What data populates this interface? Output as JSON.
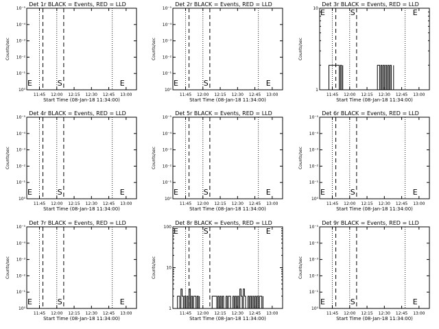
{
  "chart_data": [
    {
      "type": "line",
      "title": "Det 1r BLACK = Events, RED = LLD",
      "ylabel": "Counts/sec",
      "xlabel": "Start Time (08-Jan-18 11:34:00)",
      "scale": "log",
      "y_ticks": [
        "10⁰",
        "10⁻¹",
        "10⁻²",
        "10⁻³",
        "10⁻⁴",
        "10⁻⁵"
      ],
      "x_ticks": [
        "11:45",
        "12:00",
        "12:15",
        "12:30",
        "12:45",
        "13:00"
      ],
      "markers": [
        {
          "label": "E",
          "at": "11:34"
        },
        {
          "label": "S",
          "at": "12:00"
        },
        {
          "label": "E",
          "at": "12:54"
        }
      ],
      "series": []
    },
    {
      "type": "line",
      "title": "Det 2r BLACK = Events, RED = LLD",
      "ylabel": "Counts/sec",
      "xlabel": "Start Time (08-Jan-18 11:34:00)",
      "scale": "log",
      "y_ticks": [
        "10⁰",
        "10⁻¹",
        "10⁻²",
        "10⁻³",
        "10⁻⁴",
        "10⁻⁵"
      ],
      "x_ticks": [
        "11:45",
        "12:00",
        "12:15",
        "12:30",
        "12:45",
        "13:00"
      ],
      "markers": [
        {
          "label": "E",
          "at": "11:34"
        },
        {
          "label": "S",
          "at": "12:00"
        },
        {
          "label": "E",
          "at": "12:54"
        }
      ],
      "series": []
    },
    {
      "type": "line",
      "title": "Det 3r BLACK = Events, RED = LLD",
      "ylabel": "Counts/sec",
      "xlabel": "Start Time (08-Jan-18 11:34:00)",
      "scale": "log",
      "y_ticks": [
        "1",
        "10"
      ],
      "x_ticks": [
        "11:45",
        "12:00",
        "12:15",
        "12:30",
        "12:45",
        "13:00"
      ],
      "markers": [
        {
          "label": "E",
          "at": "11:34"
        },
        {
          "label": "S",
          "at": "12:00"
        },
        {
          "label": "E",
          "at": "12:54"
        }
      ],
      "series": [
        {
          "segments": [
            {
              "x": [
                "11:42",
                "11:42",
                "11:51",
                "11:51",
                "11:52",
                "11:52",
                "11:53",
                "11:53",
                "11:54",
                "11:54"
              ],
              "y": [
                1,
                2,
                2,
                1,
                1,
                2,
                2,
                1,
                1,
                2
              ]
            },
            {
              "x": [
                "12:24",
                "12:24",
                "12:26",
                "12:26",
                "12:27",
                "12:27",
                "12:28",
                "12:28",
                "12:29",
                "12:29",
                "12:30",
                "12:30",
                "12:31",
                "12:31",
                "12:32",
                "12:32",
                "12:33",
                "12:33",
                "12:34",
                "12:34",
                "12:35",
                "12:35",
                "12:36",
                "12:36",
                "12:38",
                "12:38"
              ],
              "y": [
                1,
                2,
                2,
                1,
                1,
                2,
                2,
                1,
                1,
                2,
                2,
                1,
                1,
                2,
                2,
                1,
                1,
                2,
                2,
                1,
                1,
                2,
                2,
                1,
                1,
                2
              ]
            }
          ]
        }
      ]
    },
    {
      "type": "line",
      "title": "Det 4r BLACK = Events, RED = LLD",
      "ylabel": "Counts/sec",
      "xlabel": "Start Time (08-Jan-18 11:34:00)",
      "scale": "log",
      "y_ticks": [
        "10⁰",
        "10⁻¹",
        "10⁻²",
        "10⁻³",
        "10⁻⁴",
        "10⁻⁵"
      ],
      "x_ticks": [
        "11:45",
        "12:00",
        "12:15",
        "12:30",
        "12:45",
        "13:00"
      ],
      "markers": [
        {
          "label": "E",
          "at": "11:34"
        },
        {
          "label": "S",
          "at": "12:00"
        },
        {
          "label": "E",
          "at": "12:54"
        }
      ],
      "series": []
    },
    {
      "type": "line",
      "title": "Det 5r BLACK = Events, RED = LLD",
      "ylabel": "Counts/sec",
      "xlabel": "Start Time (08-Jan-18 11:34:00)",
      "scale": "log",
      "y_ticks": [
        "10⁰",
        "10⁻¹",
        "10⁻²",
        "10⁻³",
        "10⁻⁴",
        "10⁻⁵"
      ],
      "x_ticks": [
        "11:45",
        "12:00",
        "12:15",
        "12:30",
        "12:45",
        "13:00"
      ],
      "markers": [
        {
          "label": "E",
          "at": "11:34"
        },
        {
          "label": "S",
          "at": "12:00"
        },
        {
          "label": "E",
          "at": "12:54"
        }
      ],
      "series": []
    },
    {
      "type": "line",
      "title": "Det 6r BLACK = Events, RED = LLD",
      "ylabel": "Counts/sec",
      "xlabel": "Start Time (08-Jan-18 11:34:00)",
      "scale": "log",
      "y_ticks": [
        "10⁰",
        "10⁻¹",
        "10⁻²",
        "10⁻³",
        "10⁻⁴",
        "10⁻⁵"
      ],
      "x_ticks": [
        "11:45",
        "12:00",
        "12:15",
        "12:30",
        "12:45",
        "13:00"
      ],
      "markers": [
        {
          "label": "E",
          "at": "11:34"
        },
        {
          "label": "S",
          "at": "12:00"
        },
        {
          "label": "E",
          "at": "12:54"
        }
      ],
      "series": []
    },
    {
      "type": "line",
      "title": "Det 7r BLACK = Events, RED = LLD",
      "ylabel": "Counts/sec",
      "xlabel": "Start Time (08-Jan-18 11:34:00)",
      "scale": "log",
      "y_ticks": [
        "10⁰",
        "10⁻¹",
        "10⁻²",
        "10⁻³",
        "10⁻⁴",
        "10⁻⁵"
      ],
      "x_ticks": [
        "11:45",
        "12:00",
        "12:15",
        "12:30",
        "12:45",
        "13:00"
      ],
      "markers": [
        {
          "label": "E",
          "at": "11:34"
        },
        {
          "label": "S",
          "at": "12:00"
        },
        {
          "label": "E",
          "at": "12:54"
        }
      ],
      "series": []
    },
    {
      "type": "line",
      "title": "Det 8r BLACK = Events, RED = LLD",
      "ylabel": "Counts/sec",
      "xlabel": "Start Time (08-Jan-18 11:34:00)",
      "scale": "log",
      "y_ticks": [
        "1",
        "10",
        "100"
      ],
      "x_ticks": [
        "11:45",
        "12:00",
        "12:15",
        "12:30",
        "12:45",
        "13:00"
      ],
      "markers": [
        {
          "label": "E",
          "at": "11:34"
        },
        {
          "label": "S",
          "at": "12:00"
        },
        {
          "label": "E",
          "at": "12:54"
        }
      ],
      "series": [
        {
          "segments": [
            {
              "x": [
                "11:38",
                "11:38",
                "11:40",
                "11:40",
                "11:41",
                "11:41",
                "11:42",
                "11:42",
                "11:43",
                "11:43",
                "11:44",
                "11:44",
                "11:45",
                "11:45",
                "11:46",
                "11:46",
                "11:47",
                "11:47",
                "11:48",
                "11:48",
                "11:49",
                "11:49",
                "11:50",
                "11:50",
                "11:51",
                "11:51",
                "11:52",
                "11:52",
                "11:54",
                "11:54",
                "11:55",
                "11:55",
                "11:56",
                "11:56",
                "11:57",
                "11:57"
              ],
              "y": [
                1,
                2,
                2,
                1,
                1,
                3,
                3,
                2,
                2,
                1,
                1,
                2,
                2,
                1,
                1,
                2,
                2,
                1,
                1,
                3,
                3,
                1,
                1,
                2,
                2,
                1,
                1,
                2,
                2,
                1,
                1,
                2,
                2,
                1,
                1,
                2
              ]
            },
            {
              "x": [
                "12:08",
                "12:08",
                "12:12",
                "12:12",
                "12:13",
                "12:13",
                "12:14",
                "12:14",
                "12:15",
                "12:15",
                "12:16",
                "12:16",
                "12:17",
                "12:17",
                "12:18",
                "12:18",
                "12:20",
                "12:20",
                "12:21",
                "12:21",
                "12:22",
                "12:22",
                "12:24",
                "12:24",
                "12:26",
                "12:26",
                "12:27",
                "12:27",
                "12:28",
                "12:28",
                "12:29",
                "12:29",
                "12:30",
                "12:30",
                "12:31",
                "12:31",
                "12:32",
                "12:32",
                "12:33",
                "12:33",
                "12:34",
                "12:34",
                "12:35",
                "12:35",
                "12:36",
                "12:36",
                "12:37",
                "12:37",
                "12:39",
                "12:39",
                "12:40",
                "12:40",
                "12:41",
                "12:41",
                "12:42",
                "12:42",
                "12:43",
                "12:43",
                "12:44",
                "12:44",
                "12:45",
                "12:45",
                "12:46",
                "12:46",
                "12:47",
                "12:47",
                "12:48",
                "12:48",
                "12:49",
                "12:49",
                "12:51",
                "12:51",
                "12:52",
                "12:52"
              ],
              "y": [
                1,
                2,
                2,
                1,
                1,
                2,
                2,
                1,
                1,
                2,
                2,
                1,
                1,
                2,
                2,
                1,
                1,
                2,
                2,
                1,
                1,
                2,
                2,
                1,
                1,
                2,
                2,
                1,
                1,
                2,
                2,
                1,
                1,
                2,
                2,
                1,
                1,
                3,
                3,
                2,
                2,
                1,
                1,
                3,
                3,
                2,
                2,
                1,
                1,
                2,
                2,
                1,
                1,
                2,
                2,
                1,
                1,
                2,
                2,
                1,
                1,
                2,
                2,
                1,
                1,
                2,
                2,
                1,
                1,
                2,
                2,
                1,
                1,
                2
              ]
            }
          ]
        }
      ]
    },
    {
      "type": "line",
      "title": "Det 9r BLACK = Events, RED = LLD",
      "ylabel": "Counts/sec",
      "xlabel": "Start Time (08-Jan-18 11:34:00)",
      "scale": "log",
      "y_ticks": [
        "10⁰",
        "10⁻¹",
        "10⁻²",
        "10⁻³",
        "10⁻⁴",
        "10⁻⁵"
      ],
      "x_ticks": [
        "11:45",
        "12:00",
        "12:15",
        "12:30",
        "12:45",
        "13:00"
      ],
      "markers": [
        {
          "label": "E",
          "at": "11:34"
        },
        {
          "label": "S",
          "at": "12:00"
        },
        {
          "label": "E",
          "at": "12:54"
        }
      ],
      "series": []
    }
  ]
}
